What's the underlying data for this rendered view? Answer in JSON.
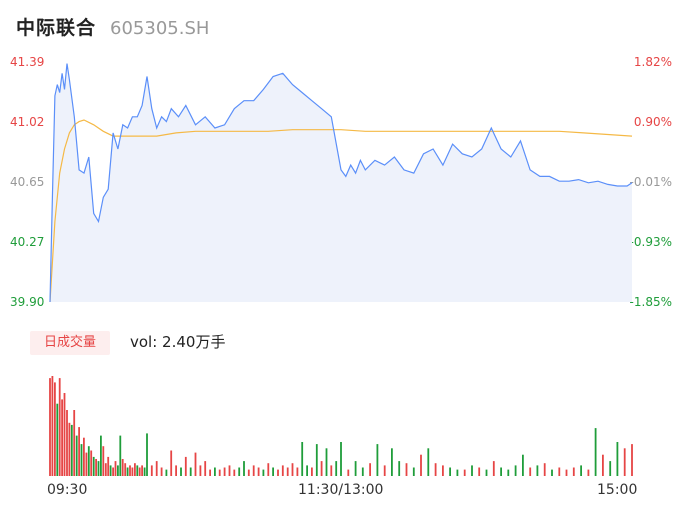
{
  "header": {
    "name": "中际联合",
    "code": "605305.SH"
  },
  "price_axis": {
    "left_labels": [
      "41.39",
      "41.02",
      "40.65",
      "40.27",
      "39.90"
    ],
    "right_labels": [
      "1.82%",
      "0.90%",
      "-0.01%",
      "-0.93%",
      "-1.85%"
    ],
    "colors": {
      "up": "#e64545",
      "flat": "#999999",
      "down": "#1f9d3a"
    }
  },
  "volume_panel": {
    "tag": "日成交量",
    "vol_label": "vol: 2.40万手"
  },
  "time_axis": {
    "labels": [
      "09:30",
      "11:30/13:00",
      "15:00"
    ]
  },
  "colors": {
    "price_line": "#5b8ff9",
    "avg_line": "#f5b946",
    "vol_up": "#e64545",
    "vol_down": "#1f9d3a",
    "area_fill": "#eef2fb"
  },
  "chart_data": {
    "type": "line",
    "title": "",
    "ylim": [
      39.9,
      41.39
    ],
    "pct_range": [
      -1.85,
      1.82
    ],
    "x_range_minutes": [
      0,
      240
    ],
    "series": [
      {
        "name": "price",
        "x": [
          0,
          1,
          2,
          3,
          4,
          5,
          6,
          7,
          8,
          10,
          12,
          14,
          16,
          18,
          20,
          22,
          24,
          26,
          28,
          30,
          32,
          34,
          36,
          38,
          40,
          42,
          44,
          46,
          48,
          50,
          53,
          56,
          60,
          64,
          68,
          72,
          76,
          80,
          84,
          88,
          92,
          96,
          100,
          104,
          108,
          112,
          116,
          120,
          122,
          124,
          126,
          128,
          130,
          134,
          138,
          142,
          146,
          150,
          154,
          158,
          162,
          166,
          170,
          174,
          178,
          182,
          186,
          190,
          194,
          198,
          202,
          206,
          210,
          214,
          218,
          222,
          226,
          230,
          234,
          238,
          240
        ],
        "y": [
          39.9,
          40.55,
          41.18,
          41.25,
          41.2,
          41.32,
          41.22,
          41.38,
          41.28,
          41.05,
          40.72,
          40.7,
          40.8,
          40.45,
          40.4,
          40.55,
          40.6,
          40.95,
          40.85,
          41.0,
          40.98,
          41.05,
          41.05,
          41.12,
          41.3,
          41.1,
          40.98,
          41.05,
          41.02,
          41.1,
          41.05,
          41.12,
          41.0,
          41.05,
          40.98,
          41.0,
          41.1,
          41.15,
          41.15,
          41.22,
          41.3,
          41.32,
          41.25,
          41.2,
          41.15,
          41.1,
          41.05,
          40.72,
          40.68,
          40.75,
          40.7,
          40.78,
          40.72,
          40.78,
          40.75,
          40.8,
          40.72,
          40.7,
          40.82,
          40.85,
          40.75,
          40.88,
          40.82,
          40.8,
          40.85,
          40.98,
          40.85,
          40.8,
          40.9,
          40.72,
          40.68,
          40.68,
          40.65,
          40.65,
          40.66,
          40.64,
          40.65,
          40.63,
          40.62,
          40.62,
          40.64
        ]
      },
      {
        "name": "avg",
        "x": [
          0,
          2,
          4,
          6,
          8,
          10,
          12,
          14,
          18,
          22,
          26,
          30,
          36,
          44,
          52,
          60,
          70,
          80,
          90,
          100,
          110,
          120,
          130,
          150,
          170,
          190,
          200,
          210,
          220,
          230,
          240
        ],
        "y": [
          39.9,
          40.4,
          40.7,
          40.85,
          40.95,
          41.0,
          41.02,
          41.03,
          41.0,
          40.96,
          40.93,
          40.93,
          40.93,
          40.93,
          40.95,
          40.96,
          40.96,
          40.96,
          40.96,
          40.97,
          40.97,
          40.97,
          40.96,
          40.96,
          40.96,
          40.96,
          40.96,
          40.96,
          40.95,
          40.94,
          40.93
        ]
      }
    ],
    "volume": {
      "x": [
        0,
        1,
        2,
        3,
        4,
        5,
        6,
        7,
        8,
        9,
        10,
        11,
        12,
        13,
        14,
        15,
        16,
        17,
        18,
        19,
        20,
        21,
        22,
        23,
        24,
        25,
        26,
        27,
        28,
        29,
        30,
        31,
        32,
        33,
        34,
        35,
        36,
        37,
        38,
        39,
        40,
        42,
        44,
        46,
        48,
        50,
        52,
        54,
        56,
        58,
        60,
        62,
        64,
        66,
        68,
        70,
        72,
        74,
        76,
        78,
        80,
        82,
        84,
        86,
        88,
        90,
        92,
        94,
        96,
        98,
        100,
        102,
        104,
        106,
        108,
        110,
        112,
        114,
        116,
        118,
        120,
        123,
        126,
        129,
        132,
        135,
        138,
        141,
        144,
        147,
        150,
        153,
        156,
        159,
        162,
        165,
        168,
        171,
        174,
        177,
        180,
        183,
        186,
        189,
        192,
        195,
        198,
        201,
        204,
        207,
        210,
        213,
        216,
        219,
        222,
        225,
        228,
        231,
        234,
        237,
        240
      ],
      "values": [
        92,
        94,
        88,
        68,
        92,
        72,
        78,
        62,
        50,
        48,
        62,
        38,
        46,
        30,
        36,
        22,
        28,
        24,
        18,
        16,
        14,
        38,
        28,
        12,
        18,
        10,
        8,
        14,
        10,
        38,
        16,
        12,
        8,
        10,
        8,
        12,
        10,
        8,
        10,
        8,
        40,
        10,
        14,
        8,
        6,
        24,
        10,
        8,
        18,
        8,
        22,
        10,
        14,
        6,
        8,
        6,
        8,
        10,
        6,
        8,
        14,
        6,
        10,
        8,
        6,
        12,
        8,
        6,
        10,
        8,
        12,
        8,
        32,
        10,
        8,
        30,
        14,
        26,
        10,
        14,
        32,
        6,
        14,
        8,
        12,
        30,
        10,
        26,
        14,
        12,
        8,
        20,
        26,
        12,
        10,
        8,
        6,
        6,
        10,
        8,
        6,
        14,
        8,
        6,
        10,
        20,
        8,
        10,
        12,
        6,
        8,
        6,
        8,
        10,
        6,
        45,
        20,
        14,
        32,
        26,
        30
      ],
      "up": [
        1,
        1,
        1,
        0,
        1,
        1,
        1,
        1,
        1,
        0,
        1,
        0,
        1,
        0,
        1,
        1,
        0,
        1,
        0,
        1,
        0,
        0,
        1,
        1,
        1,
        0,
        1,
        1,
        0,
        0,
        1,
        1,
        0,
        1,
        1,
        1,
        0,
        1,
        1,
        0,
        0,
        1,
        1,
        1,
        0,
        1,
        1,
        0,
        1,
        0,
        1,
        1,
        1,
        1,
        0,
        1,
        1,
        1,
        1,
        0,
        0,
        1,
        1,
        1,
        0,
        1,
        0,
        1,
        1,
        1,
        1,
        1,
        0,
        0,
        1,
        0,
        1,
        0,
        1,
        0,
        0,
        1,
        0,
        0,
        1,
        0,
        1,
        0,
        0,
        1,
        0,
        1,
        0,
        1,
        1,
        0,
        0,
        1,
        0,
        1,
        0,
        1,
        0,
        0,
        0,
        0,
        1,
        0,
        1,
        0,
        1,
        1,
        1,
        0,
        1,
        0,
        1,
        0,
        0,
        1,
        1
      ]
    }
  }
}
